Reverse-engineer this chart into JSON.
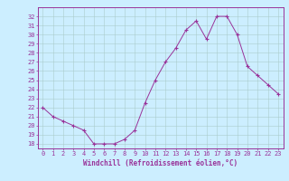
{
  "x": [
    0,
    1,
    2,
    3,
    4,
    5,
    6,
    7,
    8,
    9,
    10,
    11,
    12,
    13,
    14,
    15,
    16,
    17,
    18,
    19,
    20,
    21,
    22,
    23
  ],
  "y": [
    22,
    21,
    20.5,
    20,
    19.5,
    18,
    18,
    18,
    18.5,
    19.5,
    22.5,
    25,
    27,
    28.5,
    30.5,
    31.5,
    29.5,
    32,
    32,
    30,
    26.5,
    25.5,
    24.5,
    23.5
  ],
  "line_color": "#993399",
  "marker": "+",
  "bg_color": "#cceeff",
  "grid_color": "#bbdddd",
  "xlabel": "Windchill (Refroidissement éolien,°C)",
  "xlim": [
    -0.5,
    23.5
  ],
  "ylim": [
    17.5,
    33.0
  ],
  "yticks": [
    18,
    19,
    20,
    21,
    22,
    23,
    24,
    25,
    26,
    27,
    28,
    29,
    30,
    31,
    32
  ],
  "xticks": [
    0,
    1,
    2,
    3,
    4,
    5,
    6,
    7,
    8,
    9,
    10,
    11,
    12,
    13,
    14,
    15,
    16,
    17,
    18,
    19,
    20,
    21,
    22,
    23
  ],
  "tick_color": "#993399",
  "label_color": "#993399",
  "label_fontsize": 5.5,
  "tick_fontsize": 5.0,
  "linewidth": 0.7,
  "markersize": 2.5
}
